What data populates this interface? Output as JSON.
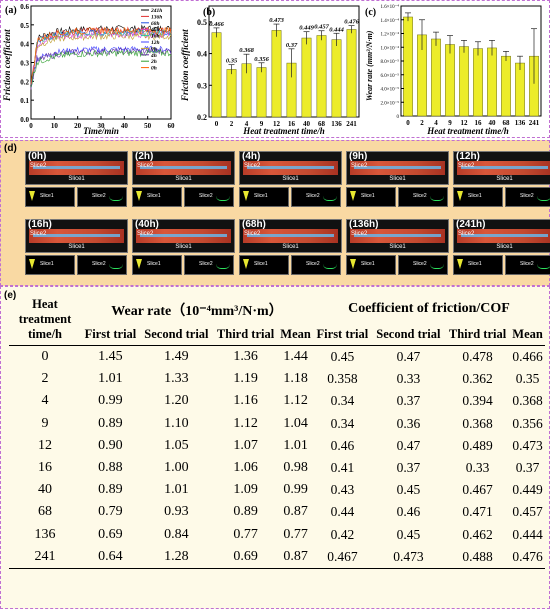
{
  "panel_a": {
    "label": "(a)",
    "xlabel": "Time/min",
    "ylabel": "Friction coefficient",
    "xticks": [
      "0",
      "10",
      "20",
      "30",
      "40",
      "50",
      "60"
    ],
    "yticks": [
      "0.0",
      "0.1",
      "0.2",
      "0.3",
      "0.4",
      "0.5",
      "0.6"
    ],
    "legend": [
      "241h",
      "136h",
      "68h",
      "40h",
      "16h",
      "12h",
      "9h",
      "4h",
      "2h",
      "0h"
    ],
    "colors": [
      "#000000",
      "#e03030",
      "#2050e0",
      "#e040e0",
      "#30c0a0",
      "#4040ff",
      "#c0a030",
      "#6030a0",
      "#30a030",
      "#ff6000"
    ]
  },
  "panel_b": {
    "label": "(b)",
    "xlabel": "Heat treatment time/h",
    "ylabel": "Friction coefficient",
    "yticks": [
      "0.2",
      "0.3",
      "0.4",
      "0.5"
    ],
    "bar_color": "#ecec2a"
  },
  "panel_c": {
    "label": "(c)",
    "xlabel": "Heat treatment time/h",
    "ylabel": "Wear rate (mm³/N·m)",
    "yticks": [
      "0",
      "2.0×10⁻⁵",
      "4.0×10⁻⁵",
      "6.0×10⁻⁵",
      "8.0×10⁻⁵",
      "1.0×10⁻⁴",
      "1.2×10⁻⁴",
      "1.4×10⁻⁴",
      "1.6×10⁻⁴"
    ],
    "bar_color": "#ecec2a"
  },
  "chart_data": [
    {
      "type": "bar",
      "title": "",
      "xlabel": "Heat treatment time/h",
      "ylabel": "Friction coefficient",
      "categories": [
        "0",
        "2",
        "4",
        "9",
        "12",
        "16",
        "40",
        "68",
        "136",
        "241"
      ],
      "values": [
        0.466,
        0.35,
        0.368,
        0.356,
        0.473,
        0.37,
        0.449,
        0.457,
        0.444,
        0.476
      ],
      "labels": [
        "0.466",
        "0.35",
        "0.368",
        "0.356",
        "0.473",
        "0.37",
        "0.449",
        "0.457",
        "0.444",
        "0.476"
      ],
      "errors": [
        0.015,
        0.015,
        0.03,
        0.015,
        0.02,
        0.045,
        0.02,
        0.015,
        0.02,
        0.012
      ],
      "ylim": [
        0.2,
        0.55
      ]
    },
    {
      "type": "bar",
      "title": "",
      "xlabel": "Heat treatment time/h",
      "ylabel": "Wear rate (mm³/N·m)",
      "categories": [
        "0",
        "2",
        "4",
        "9",
        "12",
        "16",
        "40",
        "68",
        "136",
        "241"
      ],
      "values": [
        0.000144,
        0.000118,
        0.000112,
        0.000104,
        0.000101,
        9.8e-05,
        9.9e-05,
        8.7e-05,
        7.7e-05,
        8.7e-05
      ],
      "errors": [
        6e-06,
        2.2e-05,
        1e-05,
        1.3e-05,
        9e-06,
        1e-05,
        1.1e-05,
        7e-06,
        1e-05,
        4e-05
      ],
      "ylim": [
        0,
        0.00016
      ]
    }
  ],
  "panel_d": {
    "label": "(d)",
    "slice1": "Slice1",
    "slice2": "Slice2",
    "samples": [
      "(0h)",
      "(2h)",
      "(4h)",
      "(9h)",
      "(12h)",
      "(16h)",
      "(40h)",
      "(68h)",
      "(136h)",
      "(241h)"
    ]
  },
  "panel_e": {
    "label": "(e)",
    "group_wear": "Wear rate（10⁻⁴mm³/N·m）",
    "group_cof": "Coefficient of friction/COF",
    "col_time": "Heat treatment time/h",
    "cols": [
      "First trial",
      "Second trial",
      "Third trial",
      "Mean",
      "First trial",
      "Second trial",
      "Third trial",
      "Mean"
    ],
    "rows": [
      [
        "0",
        "1.45",
        "1.49",
        "1.36",
        "1.44",
        "0.45",
        "0.47",
        "0.478",
        "0.466"
      ],
      [
        "2",
        "1.01",
        "1.33",
        "1.19",
        "1.18",
        "0.358",
        "0.33",
        "0.362",
        "0.35"
      ],
      [
        "4",
        "0.99",
        "1.20",
        "1.16",
        "1.12",
        "0.34",
        "0.37",
        "0.394",
        "0.368"
      ],
      [
        "9",
        "0.89",
        "1.10",
        "1.12",
        "1.04",
        "0.34",
        "0.36",
        "0.368",
        "0.356"
      ],
      [
        "12",
        "0.90",
        "1.05",
        "1.07",
        "1.01",
        "0.46",
        "0.47",
        "0.489",
        "0.473"
      ],
      [
        "16",
        "0.88",
        "1.00",
        "1.06",
        "0.98",
        "0.41",
        "0.37",
        "0.33",
        "0.37"
      ],
      [
        "40",
        "0.89",
        "1.01",
        "1.09",
        "0.99",
        "0.43",
        "0.45",
        "0.467",
        "0.449"
      ],
      [
        "68",
        "0.79",
        "0.93",
        "0.89",
        "0.87",
        "0.44",
        "0.46",
        "0.471",
        "0.457"
      ],
      [
        "136",
        "0.69",
        "0.84",
        "0.77",
        "0.77",
        "0.42",
        "0.45",
        "0.462",
        "0.444"
      ],
      [
        "241",
        "0.64",
        "1.28",
        "0.69",
        "0.87",
        "0.467",
        "0.473",
        "0.488",
        "0.476"
      ]
    ]
  }
}
